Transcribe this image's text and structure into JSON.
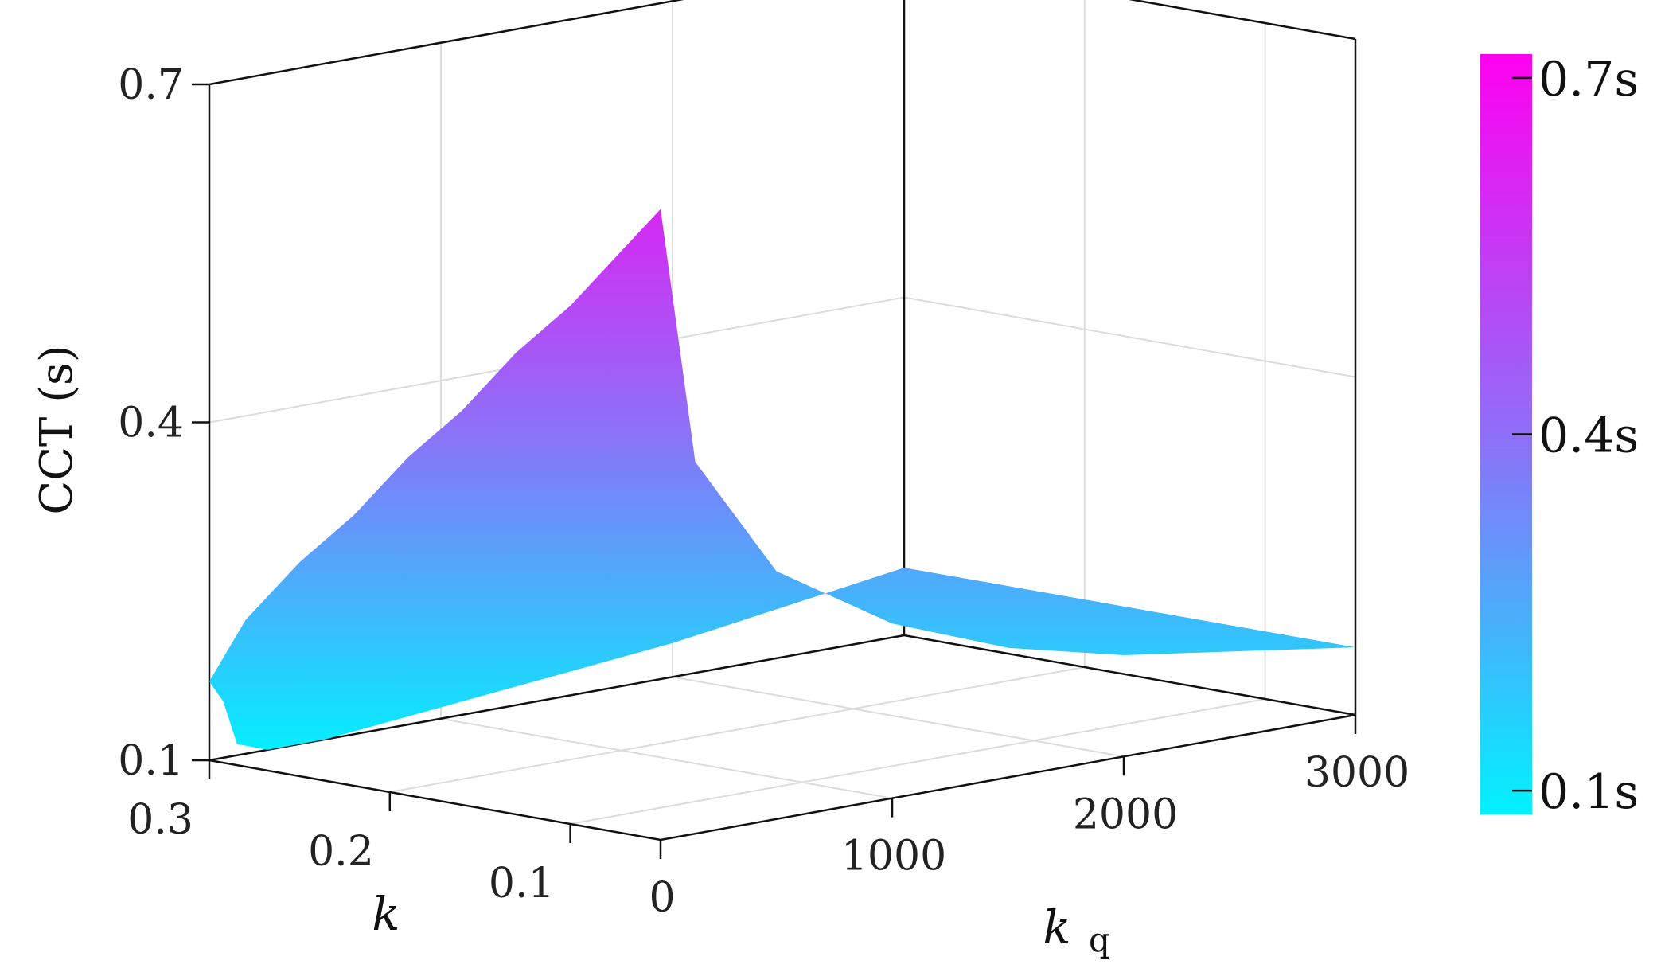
{
  "colors": {
    "low": "#00f2ff",
    "mid": "#8f6ff8",
    "high": "#ff00f0"
  },
  "chart_data": {
    "type": "surface",
    "title": "",
    "x_axis": {
      "label": "k",
      "ticks": [
        0.1,
        0.2,
        0.3
      ],
      "tick_labels": [
        "0.1",
        "0.2",
        "0.3"
      ],
      "range": [
        0.05,
        0.3
      ]
    },
    "y_axis": {
      "label": "k",
      "subscript": "q",
      "ticks": [
        0,
        1000,
        2000,
        3000
      ],
      "tick_labels": [
        "0",
        "1000",
        "2000",
        "3000"
      ],
      "range": [
        0,
        3000
      ]
    },
    "z_axis": {
      "label": "CCT (s)",
      "ticks": [
        0.1,
        0.4,
        0.7
      ],
      "tick_labels": [
        "0.1",
        "0.4",
        "0.7"
      ],
      "range": [
        0.1,
        0.7
      ]
    },
    "colorbar": {
      "ticks": [
        0.1,
        0.4,
        0.7
      ],
      "tick_labels": [
        "0.1s",
        "0.4s",
        "0.7s"
      ],
      "range": [
        0.08,
        0.72
      ]
    },
    "grid": true,
    "corner_values": [
      {
        "k": 0.3,
        "kq": 0,
        "cct": 0.17
      },
      {
        "k": 0.05,
        "kq": 0,
        "cct": 0.66
      },
      {
        "k": 0.05,
        "kq": 3000,
        "cct": 0.16
      },
      {
        "k": 0.3,
        "kq": 3000,
        "cct": 0.16
      }
    ],
    "edge_high_k": {
      "kq": [
        0,
        60,
        120,
        250,
        500,
        1000,
        1500,
        2000,
        2500,
        3000
      ],
      "cct": [
        0.17,
        0.15,
        0.11,
        0.1,
        0.1,
        0.11,
        0.12,
        0.13,
        0.145,
        0.16
      ]
    },
    "edge_low_k": {
      "kq": [
        0,
        150,
        500,
        1000,
        1500,
        2000,
        2500,
        3000
      ],
      "cct": [
        0.66,
        0.43,
        0.32,
        0.255,
        0.215,
        0.19,
        0.175,
        0.16
      ]
    },
    "edge_kq0": {
      "k": [
        0.3,
        0.28,
        0.25,
        0.22,
        0.19,
        0.16,
        0.13,
        0.1,
        0.075,
        0.05
      ],
      "cct": [
        0.17,
        0.23,
        0.29,
        0.34,
        0.4,
        0.45,
        0.51,
        0.56,
        0.61,
        0.66
      ]
    }
  }
}
